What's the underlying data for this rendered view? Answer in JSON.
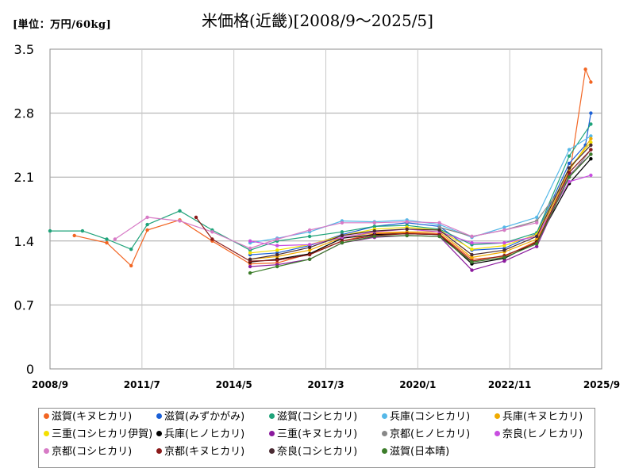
{
  "unit_label": "[単位：万円/60kg]",
  "chart_data": {
    "type": "line",
    "title": "米価格(近畿)[2008/9～2025/5]",
    "ylim": [
      0,
      3.5
    ],
    "y_ticks": [
      "0",
      "0.7",
      "1.4",
      "2.1",
      "2.8",
      "3.5"
    ],
    "x_range": [
      "2008-09",
      "2025-09"
    ],
    "x_ticks": [
      "2008/9",
      "2011/7",
      "2014/5",
      "2017/3",
      "2020/1",
      "2022/11",
      "2025/9"
    ],
    "grid": true,
    "legend_position": "bottom",
    "series": [
      {
        "name": "滋賀(キヌヒカリ)",
        "color": "#f26522",
        "points": [
          [
            "2009-06",
            1.46
          ],
          [
            "2010-06",
            1.38
          ],
          [
            "2011-03",
            1.13
          ],
          [
            "2011-09",
            1.52
          ],
          [
            "2012-09",
            1.63
          ],
          [
            "2013-09",
            1.4
          ],
          [
            "2014-11",
            1.15
          ],
          [
            "2015-09",
            1.16
          ],
          [
            "2016-09",
            1.26
          ],
          [
            "2017-09",
            1.4
          ],
          [
            "2018-09",
            1.48
          ],
          [
            "2019-09",
            1.49
          ],
          [
            "2020-09",
            1.48
          ],
          [
            "2021-09",
            1.2
          ],
          [
            "2022-09",
            1.23
          ],
          [
            "2023-09",
            1.4
          ],
          [
            "2024-09",
            2.1
          ],
          [
            "2025-03",
            3.28
          ],
          [
            "2025-05",
            3.14
          ]
        ]
      },
      {
        "name": "滋賀(みずかがみ)",
        "color": "#1a5fd6",
        "points": [
          [
            "2014-11",
            1.25
          ],
          [
            "2015-09",
            1.27
          ],
          [
            "2016-09",
            1.35
          ],
          [
            "2017-09",
            1.47
          ],
          [
            "2018-09",
            1.56
          ],
          [
            "2019-09",
            1.6
          ],
          [
            "2020-09",
            1.56
          ],
          [
            "2021-09",
            1.3
          ],
          [
            "2022-09",
            1.32
          ],
          [
            "2023-09",
            1.48
          ],
          [
            "2024-09",
            2.25
          ],
          [
            "2025-03",
            2.45
          ],
          [
            "2025-05",
            2.8
          ]
        ]
      },
      {
        "name": "滋賀(コシヒカリ)",
        "color": "#1fa37a",
        "points": [
          [
            "2008-09",
            1.51
          ],
          [
            "2009-09",
            1.51
          ],
          [
            "2010-06",
            1.42
          ],
          [
            "2011-03",
            1.31
          ],
          [
            "2011-09",
            1.58
          ],
          [
            "2012-09",
            1.73
          ],
          [
            "2013-09",
            1.52
          ],
          [
            "2014-11",
            1.3
          ],
          [
            "2015-09",
            1.4
          ],
          [
            "2016-09",
            1.45
          ],
          [
            "2017-09",
            1.5
          ],
          [
            "2018-09",
            1.56
          ],
          [
            "2019-09",
            1.57
          ],
          [
            "2020-09",
            1.53
          ],
          [
            "2021-09",
            1.36
          ],
          [
            "2022-09",
            1.38
          ],
          [
            "2023-09",
            1.49
          ],
          [
            "2024-09",
            2.33
          ],
          [
            "2025-05",
            2.68
          ]
        ]
      },
      {
        "name": "兵庫(コシヒカリ)",
        "color": "#55b8e8",
        "points": [
          [
            "2014-11",
            1.38
          ],
          [
            "2015-09",
            1.43
          ],
          [
            "2016-09",
            1.5
          ],
          [
            "2017-09",
            1.62
          ],
          [
            "2018-09",
            1.61
          ],
          [
            "2019-09",
            1.63
          ],
          [
            "2020-09",
            1.58
          ],
          [
            "2021-09",
            1.44
          ],
          [
            "2022-09",
            1.55
          ],
          [
            "2023-09",
            1.66
          ],
          [
            "2024-09",
            2.4
          ],
          [
            "2025-05",
            2.55
          ]
        ]
      },
      {
        "name": "兵庫(キヌヒカリ)",
        "color": "#f0ab00",
        "points": [
          [
            "2014-11",
            1.2
          ],
          [
            "2015-09",
            1.23
          ],
          [
            "2016-09",
            1.3
          ],
          [
            "2017-09",
            1.44
          ],
          [
            "2018-09",
            1.49
          ],
          [
            "2019-09",
            1.5
          ],
          [
            "2020-09",
            1.5
          ],
          [
            "2021-09",
            1.22
          ],
          [
            "2022-09",
            1.28
          ],
          [
            "2023-09",
            1.42
          ],
          [
            "2024-09",
            2.17
          ],
          [
            "2025-05",
            2.52
          ]
        ]
      },
      {
        "name": "三重(コシヒカリ伊賀)",
        "color": "#f4e000",
        "points": [
          [
            "2014-11",
            1.27
          ],
          [
            "2015-09",
            1.3
          ],
          [
            "2016-09",
            1.36
          ],
          [
            "2017-09",
            1.46
          ],
          [
            "2018-09",
            1.53
          ],
          [
            "2019-09",
            1.55
          ],
          [
            "2020-09",
            1.52
          ],
          [
            "2021-09",
            1.31
          ],
          [
            "2022-09",
            1.35
          ],
          [
            "2023-09",
            1.47
          ],
          [
            "2024-09",
            2.2
          ],
          [
            "2025-05",
            2.48
          ]
        ]
      },
      {
        "name": "兵庫(ヒノヒカリ)",
        "color": "#000000",
        "points": [
          [
            "2014-11",
            1.17
          ],
          [
            "2015-09",
            1.2
          ],
          [
            "2016-09",
            1.26
          ],
          [
            "2017-09",
            1.43
          ],
          [
            "2018-09",
            1.47
          ],
          [
            "2019-09",
            1.48
          ],
          [
            "2020-09",
            1.47
          ],
          [
            "2021-09",
            1.15
          ],
          [
            "2022-09",
            1.21
          ],
          [
            "2023-09",
            1.39
          ],
          [
            "2024-09",
            2.03
          ],
          [
            "2025-05",
            2.3
          ]
        ]
      },
      {
        "name": "三重(キヌヒカリ)",
        "color": "#8b1a9e",
        "points": [
          [
            "2014-11",
            1.12
          ],
          [
            "2015-09",
            1.14
          ],
          [
            "2016-09",
            1.2
          ],
          [
            "2017-09",
            1.38
          ],
          [
            "2018-09",
            1.44
          ],
          [
            "2019-09",
            1.46
          ],
          [
            "2020-09",
            1.45
          ],
          [
            "2021-09",
            1.08
          ],
          [
            "2022-09",
            1.18
          ],
          [
            "2023-09",
            1.34
          ],
          [
            "2024-09",
            2.12
          ],
          [
            "2025-05",
            2.35
          ]
        ]
      },
      {
        "name": "京都(ヒノヒカリ)",
        "color": "#888888",
        "points": [
          [
            "2020-09",
            1.55
          ],
          [
            "2021-09",
            1.45
          ],
          [
            "2022-09",
            1.52
          ],
          [
            "2023-09",
            1.62
          ],
          [
            "2024-09",
            2.1
          ],
          [
            "2025-05",
            2.4
          ]
        ]
      },
      {
        "name": "奈良(ヒノヒカリ)",
        "color": "#c84ee0",
        "points": [
          [
            "2014-11",
            1.4
          ],
          [
            "2015-09",
            1.35
          ],
          [
            "2016-09",
            1.36
          ],
          [
            "2017-09",
            1.44
          ],
          [
            "2018-09",
            1.5
          ],
          [
            "2019-09",
            1.53
          ],
          [
            "2020-09",
            1.5
          ],
          [
            "2021-09",
            1.38
          ],
          [
            "2022-09",
            1.38
          ],
          [
            "2023-09",
            1.45
          ],
          [
            "2024-09",
            2.05
          ],
          [
            "2025-05",
            2.12
          ]
        ]
      },
      {
        "name": "京都(コシヒカリ)",
        "color": "#d77bc6",
        "points": [
          [
            "2010-09",
            1.42
          ],
          [
            "2011-09",
            1.66
          ],
          [
            "2012-09",
            1.62
          ],
          [
            "2013-09",
            1.5
          ],
          [
            "2014-11",
            1.32
          ],
          [
            "2015-09",
            1.42
          ],
          [
            "2016-09",
            1.52
          ],
          [
            "2017-09",
            1.6
          ],
          [
            "2018-09",
            1.6
          ],
          [
            "2019-09",
            1.61
          ],
          [
            "2020-09",
            1.6
          ],
          [
            "2021-09",
            1.45
          ],
          [
            "2022-09",
            1.52
          ],
          [
            "2023-09",
            1.6
          ]
        ]
      },
      {
        "name": "京都(キヌヒカリ)",
        "color": "#8b1a1a",
        "points": [
          [
            "2013-03",
            1.66
          ],
          [
            "2013-09",
            1.42
          ],
          [
            "2014-11",
            1.18
          ],
          [
            "2015-09",
            1.19
          ],
          [
            "2016-09",
            1.25
          ],
          [
            "2017-09",
            1.4
          ],
          [
            "2018-09",
            1.46
          ],
          [
            "2019-09",
            1.48
          ],
          [
            "2020-09",
            1.47
          ],
          [
            "2021-09",
            1.18
          ],
          [
            "2022-09",
            1.24
          ],
          [
            "2023-09",
            1.38
          ],
          [
            "2024-09",
            2.15
          ],
          [
            "2025-05",
            2.4
          ]
        ]
      },
      {
        "name": "奈良(コシヒカリ)",
        "color": "#4a2a32",
        "points": [
          [
            "2014-11",
            1.2
          ],
          [
            "2015-09",
            1.25
          ],
          [
            "2016-09",
            1.33
          ],
          [
            "2017-09",
            1.46
          ],
          [
            "2018-09",
            1.51
          ],
          [
            "2019-09",
            1.53
          ],
          [
            "2020-09",
            1.52
          ],
          [
            "2021-09",
            1.25
          ],
          [
            "2022-09",
            1.3
          ],
          [
            "2023-09",
            1.45
          ],
          [
            "2024-09",
            2.2
          ],
          [
            "2025-05",
            2.45
          ]
        ]
      },
      {
        "name": "滋賀(日本晴)",
        "color": "#3c7d2a",
        "points": [
          [
            "2014-11",
            1.05
          ],
          [
            "2015-09",
            1.12
          ],
          [
            "2016-09",
            1.2
          ],
          [
            "2017-09",
            1.38
          ],
          [
            "2018-09",
            1.45
          ],
          [
            "2019-09",
            1.46
          ],
          [
            "2020-09",
            1.45
          ],
          [
            "2021-09",
            1.17
          ],
          [
            "2022-09",
            1.22
          ],
          [
            "2023-09",
            1.37
          ],
          [
            "2024-09",
            2.1
          ],
          [
            "2025-05",
            2.35
          ]
        ]
      }
    ]
  }
}
